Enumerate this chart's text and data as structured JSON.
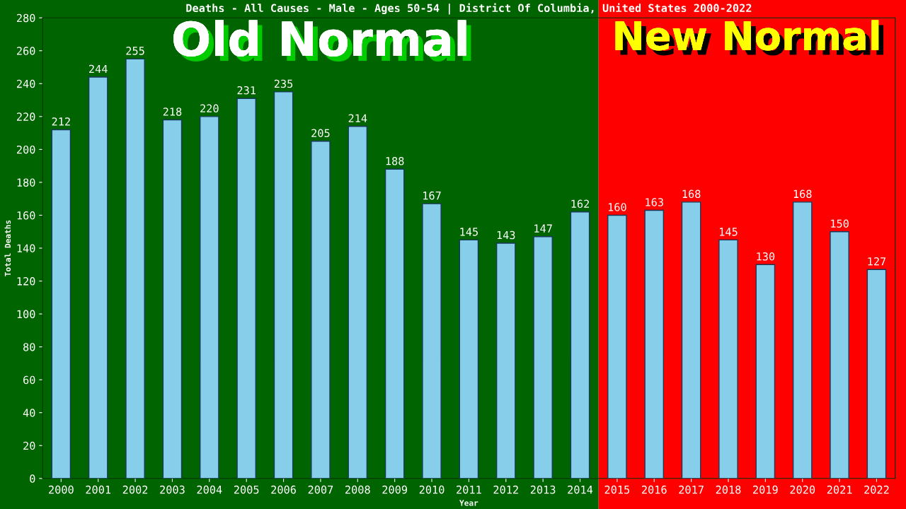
{
  "chart_data": {
    "type": "bar",
    "title": "Deaths - All Causes - Male - Ages 50-54 | District Of Columbia, United States 2000-2022",
    "xlabel": "Year",
    "ylabel": "Total Deaths",
    "categories": [
      "2000",
      "2001",
      "2002",
      "2003",
      "2004",
      "2005",
      "2006",
      "2007",
      "2008",
      "2009",
      "2010",
      "2011",
      "2012",
      "2013",
      "2014",
      "2015",
      "2016",
      "2017",
      "2018",
      "2019",
      "2020",
      "2021",
      "2022"
    ],
    "values": [
      212,
      244,
      255,
      218,
      220,
      231,
      235,
      205,
      214,
      188,
      167,
      145,
      143,
      147,
      162,
      160,
      163,
      168,
      145,
      130,
      168,
      150,
      127
    ],
    "color": "#87ceeb",
    "ylim": [
      0,
      280
    ],
    "yticks": [
      0,
      20,
      40,
      60,
      80,
      100,
      120,
      140,
      160,
      180,
      200,
      220,
      240,
      260,
      280
    ],
    "grid": false,
    "legend": false,
    "data_labels": true,
    "bands": [
      {
        "axis": "x",
        "from": "2000",
        "to": "2014",
        "label": "Old Normal",
        "color": "#006400"
      },
      {
        "axis": "x",
        "from": "2015",
        "to": "2022",
        "label": "New Normal",
        "color": "#ff0000"
      }
    ]
  }
}
